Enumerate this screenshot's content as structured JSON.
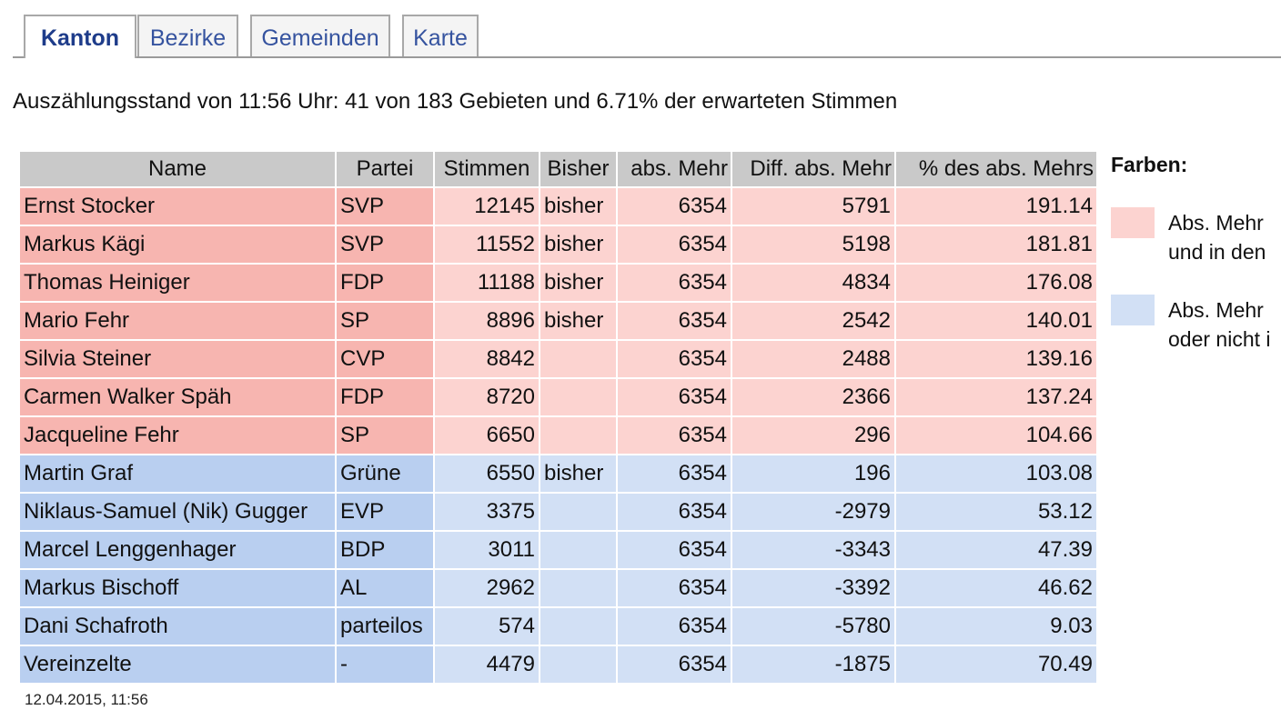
{
  "tabs": [
    {
      "label": "Kanton",
      "active": true
    },
    {
      "label": "Bezirke",
      "active": false
    },
    {
      "label": "Gemeinden",
      "active": false
    },
    {
      "label": "Karte",
      "active": false
    }
  ],
  "status_text": "Auszählungsstand von 11:56 Uhr: 41 von 183 Gebieten und 6.71% der erwarteten Stimmen",
  "table": {
    "headers": [
      "Name",
      "Partei",
      "Stimmen",
      "Bisher",
      "abs. Mehr",
      "Diff. abs. Mehr",
      "% des abs. Mehrs"
    ],
    "rows": [
      {
        "name": "Ernst Stocker",
        "party": "SVP",
        "votes": "12145",
        "bisher": "bisher",
        "abs": "6354",
        "diff": "5791",
        "pct": "191.14",
        "status": "elected"
      },
      {
        "name": "Markus Kägi",
        "party": "SVP",
        "votes": "11552",
        "bisher": "bisher",
        "abs": "6354",
        "diff": "5198",
        "pct": "181.81",
        "status": "elected"
      },
      {
        "name": "Thomas Heiniger",
        "party": "FDP",
        "votes": "11188",
        "bisher": "bisher",
        "abs": "6354",
        "diff": "4834",
        "pct": "176.08",
        "status": "elected"
      },
      {
        "name": "Mario Fehr",
        "party": "SP",
        "votes": "8896",
        "bisher": "bisher",
        "abs": "6354",
        "diff": "2542",
        "pct": "140.01",
        "status": "elected"
      },
      {
        "name": "Silvia Steiner",
        "party": "CVP",
        "votes": "8842",
        "bisher": "",
        "abs": "6354",
        "diff": "2488",
        "pct": "139.16",
        "status": "elected"
      },
      {
        "name": "Carmen Walker Späh",
        "party": "FDP",
        "votes": "8720",
        "bisher": "",
        "abs": "6354",
        "diff": "2366",
        "pct": "137.24",
        "status": "elected"
      },
      {
        "name": "Jacqueline Fehr",
        "party": "SP",
        "votes": "6650",
        "bisher": "",
        "abs": "6354",
        "diff": "296",
        "pct": "104.66",
        "status": "elected"
      },
      {
        "name": "Martin Graf",
        "party": "Grüne",
        "votes": "6550",
        "bisher": "bisher",
        "abs": "6354",
        "diff": "196",
        "pct": "103.08",
        "status": "notel"
      },
      {
        "name": "Niklaus-Samuel (Nik) Gugger",
        "party": "EVP",
        "votes": "3375",
        "bisher": "",
        "abs": "6354",
        "diff": "-2979",
        "pct": "53.12",
        "status": "notel"
      },
      {
        "name": "Marcel Lenggenhager",
        "party": "BDP",
        "votes": "3011",
        "bisher": "",
        "abs": "6354",
        "diff": "-3343",
        "pct": "47.39",
        "status": "notel"
      },
      {
        "name": "Markus Bischoff",
        "party": "AL",
        "votes": "2962",
        "bisher": "",
        "abs": "6354",
        "diff": "-3392",
        "pct": "46.62",
        "status": "notel"
      },
      {
        "name": "Dani Schafroth",
        "party": "parteilos",
        "votes": "574",
        "bisher": "",
        "abs": "6354",
        "diff": "-5780",
        "pct": "9.03",
        "status": "notel"
      },
      {
        "name": "Vereinzelte",
        "party": "-",
        "votes": "4479",
        "bisher": "",
        "abs": "6354",
        "diff": "-1875",
        "pct": "70.49",
        "status": "notel"
      }
    ]
  },
  "timestamp": "12.04.2015, 11:56",
  "legend": {
    "title": "Farben:",
    "items": [
      {
        "line1": "Abs. Mehr",
        "line2": "und in den",
        "color": "#fcd3d0"
      },
      {
        "line1": "Abs. Mehr",
        "line2": "oder nicht i",
        "color": "#d2e0f5"
      }
    ]
  },
  "colors": {
    "elected_light": "#fcd3d0",
    "elected_strong": "#f7b5b0",
    "not_elected_light": "#d2e0f5",
    "not_elected_strong": "#b9cff0",
    "header_gray": "#c9c9c9",
    "tab_text": "#35539f"
  }
}
